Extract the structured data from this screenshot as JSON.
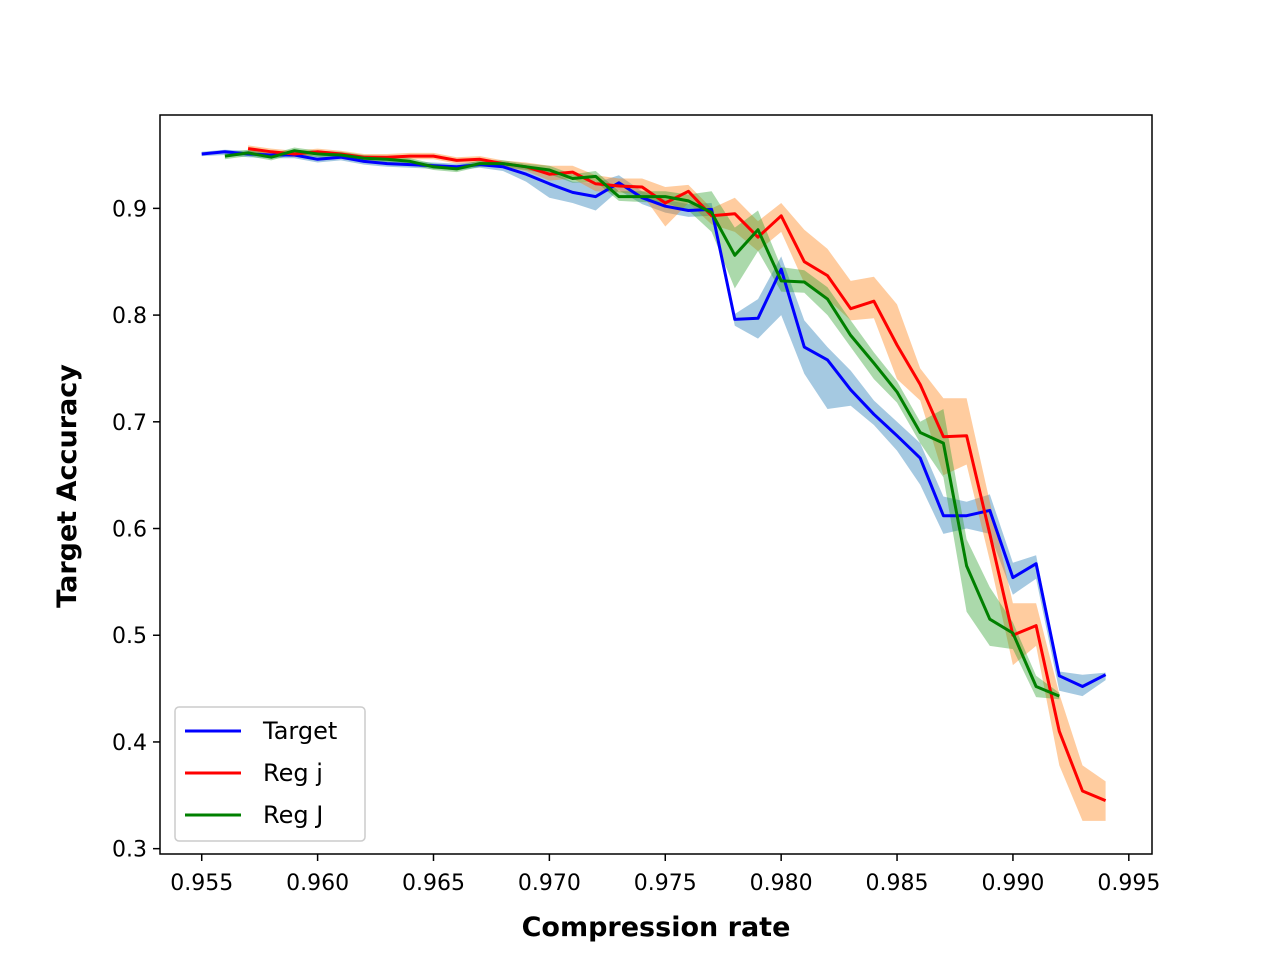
{
  "chart_data": {
    "type": "line",
    "title": "",
    "xlabel": "Compression rate",
    "ylabel": "Target Accuracy",
    "xlim": [
      0.9532,
      0.996
    ],
    "ylim": [
      0.295,
      0.9875
    ],
    "xticks": [
      0.955,
      0.96,
      0.965,
      0.97,
      0.975,
      0.98,
      0.985,
      0.99,
      0.995
    ],
    "xtick_labels": [
      "0.955",
      "0.960",
      "0.965",
      "0.970",
      "0.975",
      "0.980",
      "0.985",
      "0.990",
      "0.995"
    ],
    "yticks": [
      0.3,
      0.4,
      0.5,
      0.6,
      0.7,
      0.8,
      0.9
    ],
    "ytick_labels": [
      "0.3",
      "0.4",
      "0.5",
      "0.6",
      "0.7",
      "0.8",
      "0.9"
    ],
    "grid": false,
    "legend_position": "bottom-left",
    "series": [
      {
        "name": "Target",
        "color": "#0000ff",
        "band_color": "#1f77b4",
        "x": [
          0.955,
          0.956,
          0.957,
          0.958,
          0.959,
          0.96,
          0.961,
          0.962,
          0.963,
          0.964,
          0.965,
          0.966,
          0.967,
          0.968,
          0.969,
          0.97,
          0.971,
          0.972,
          0.973,
          0.974,
          0.975,
          0.976,
          0.977,
          0.978,
          0.979,
          0.98,
          0.981,
          0.982,
          0.983,
          0.984,
          0.985,
          0.986,
          0.987,
          0.988,
          0.989,
          0.99,
          0.991,
          0.992,
          0.993,
          0.994
        ],
        "y": [
          0.951,
          0.953,
          0.951,
          0.95,
          0.95,
          0.946,
          0.948,
          0.944,
          0.942,
          0.941,
          0.94,
          0.939,
          0.941,
          0.939,
          0.932,
          0.923,
          0.915,
          0.911,
          0.924,
          0.91,
          0.902,
          0.898,
          0.899,
          0.796,
          0.797,
          0.843,
          0.77,
          0.758,
          0.73,
          0.707,
          0.687,
          0.666,
          0.612,
          0.612,
          0.617,
          0.554,
          0.567,
          0.462,
          0.452,
          0.463
        ],
        "lower": [
          0.949,
          0.95,
          0.948,
          0.947,
          0.947,
          0.943,
          0.945,
          0.941,
          0.939,
          0.938,
          0.937,
          0.936,
          0.938,
          0.935,
          0.925,
          0.91,
          0.905,
          0.898,
          0.917,
          0.904,
          0.896,
          0.892,
          0.893,
          0.79,
          0.778,
          0.8,
          0.745,
          0.712,
          0.715,
          0.697,
          0.673,
          0.641,
          0.595,
          0.6,
          0.595,
          0.538,
          0.553,
          0.448,
          0.443,
          0.458
        ],
        "upper": [
          0.953,
          0.955,
          0.954,
          0.953,
          0.953,
          0.949,
          0.951,
          0.947,
          0.945,
          0.944,
          0.943,
          0.942,
          0.944,
          0.943,
          0.939,
          0.935,
          0.925,
          0.924,
          0.931,
          0.916,
          0.908,
          0.904,
          0.905,
          0.801,
          0.815,
          0.855,
          0.795,
          0.77,
          0.748,
          0.72,
          0.7,
          0.68,
          0.63,
          0.625,
          0.632,
          0.568,
          0.575,
          0.466,
          0.463,
          0.465
        ]
      },
      {
        "name": "Reg j",
        "color": "#ff0000",
        "band_color": "#ff7f0e",
        "x": [
          0.957,
          0.958,
          0.959,
          0.96,
          0.961,
          0.962,
          0.963,
          0.964,
          0.965,
          0.966,
          0.967,
          0.968,
          0.969,
          0.97,
          0.971,
          0.972,
          0.973,
          0.974,
          0.975,
          0.976,
          0.977,
          0.978,
          0.979,
          0.98,
          0.981,
          0.982,
          0.983,
          0.984,
          0.985,
          0.986,
          0.987,
          0.988,
          0.989,
          0.99,
          0.991,
          0.992,
          0.993,
          0.994
        ],
        "y": [
          0.956,
          0.953,
          0.951,
          0.953,
          0.951,
          0.948,
          0.948,
          0.949,
          0.949,
          0.945,
          0.946,
          0.942,
          0.939,
          0.932,
          0.934,
          0.923,
          0.921,
          0.92,
          0.905,
          0.916,
          0.893,
          0.895,
          0.873,
          0.893,
          0.85,
          0.837,
          0.806,
          0.813,
          0.772,
          0.735,
          0.686,
          0.687,
          0.595,
          0.5,
          0.509,
          0.41,
          0.354,
          0.345
        ],
        "lower": [
          0.953,
          0.95,
          0.948,
          0.95,
          0.948,
          0.945,
          0.945,
          0.946,
          0.946,
          0.942,
          0.943,
          0.939,
          0.935,
          0.926,
          0.928,
          0.916,
          0.915,
          0.913,
          0.883,
          0.905,
          0.885,
          0.878,
          0.86,
          0.878,
          0.83,
          0.815,
          0.795,
          0.797,
          0.74,
          0.72,
          0.65,
          0.66,
          0.57,
          0.472,
          0.49,
          0.378,
          0.326,
          0.326
        ],
        "upper": [
          0.959,
          0.956,
          0.954,
          0.956,
          0.954,
          0.951,
          0.951,
          0.952,
          0.952,
          0.948,
          0.949,
          0.945,
          0.943,
          0.94,
          0.94,
          0.931,
          0.928,
          0.928,
          0.92,
          0.922,
          0.9,
          0.91,
          0.888,
          0.905,
          0.88,
          0.862,
          0.832,
          0.836,
          0.81,
          0.75,
          0.722,
          0.722,
          0.625,
          0.53,
          0.53,
          0.445,
          0.378,
          0.363
        ]
      },
      {
        "name": "Reg J",
        "color": "#008000",
        "band_color": "#2ca02c",
        "x": [
          0.956,
          0.957,
          0.958,
          0.959,
          0.96,
          0.961,
          0.962,
          0.963,
          0.964,
          0.965,
          0.966,
          0.967,
          0.968,
          0.969,
          0.97,
          0.971,
          0.972,
          0.973,
          0.974,
          0.975,
          0.976,
          0.977,
          0.978,
          0.979,
          0.98,
          0.981,
          0.982,
          0.983,
          0.984,
          0.985,
          0.986,
          0.987,
          0.988,
          0.989,
          0.99,
          0.991,
          0.992
        ],
        "y": [
          0.949,
          0.952,
          0.948,
          0.954,
          0.951,
          0.95,
          0.947,
          0.946,
          0.944,
          0.939,
          0.937,
          0.942,
          0.942,
          0.939,
          0.936,
          0.928,
          0.93,
          0.911,
          0.911,
          0.911,
          0.907,
          0.896,
          0.856,
          0.88,
          0.832,
          0.831,
          0.815,
          0.781,
          0.755,
          0.728,
          0.69,
          0.68,
          0.565,
          0.515,
          0.502,
          0.452,
          0.443
        ],
        "lower": [
          0.946,
          0.949,
          0.945,
          0.951,
          0.948,
          0.947,
          0.944,
          0.943,
          0.941,
          0.936,
          0.934,
          0.939,
          0.939,
          0.936,
          0.932,
          0.924,
          0.925,
          0.907,
          0.906,
          0.905,
          0.898,
          0.878,
          0.825,
          0.86,
          0.822,
          0.821,
          0.8,
          0.77,
          0.74,
          0.718,
          0.68,
          0.648,
          0.522,
          0.49,
          0.487,
          0.442,
          0.44
        ],
        "upper": [
          0.952,
          0.955,
          0.951,
          0.957,
          0.954,
          0.953,
          0.95,
          0.949,
          0.947,
          0.942,
          0.94,
          0.945,
          0.945,
          0.942,
          0.94,
          0.932,
          0.935,
          0.916,
          0.916,
          0.916,
          0.913,
          0.916,
          0.882,
          0.898,
          0.845,
          0.842,
          0.826,
          0.795,
          0.765,
          0.738,
          0.7,
          0.712,
          0.59,
          0.545,
          0.512,
          0.462,
          0.446
        ]
      }
    ]
  }
}
